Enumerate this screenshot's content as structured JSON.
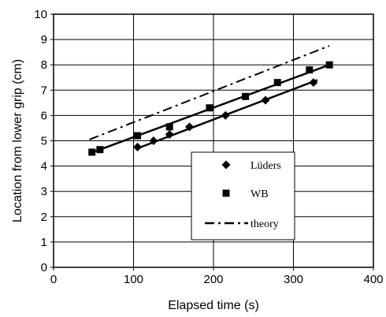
{
  "chart_data": {
    "type": "scatter",
    "title": "",
    "xlabel": "Elapsed time (s)",
    "ylabel": "Location from lower grip (cm)",
    "xlim": [
      0,
      400
    ],
    "ylim": [
      0,
      10
    ],
    "xticks": [
      "0",
      "100",
      "200",
      "300",
      "400"
    ],
    "yticks": [
      "0",
      "1",
      "2",
      "3",
      "4",
      "5",
      "6",
      "7",
      "8",
      "9",
      "10"
    ],
    "grid": true,
    "legend_placement": "lower-right",
    "series": [
      {
        "name": "Lüders",
        "marker": "diamond",
        "points": [
          [
            105,
            4.75
          ],
          [
            125,
            5.0
          ],
          [
            145,
            5.25
          ],
          [
            170,
            5.55
          ],
          [
            215,
            6.0
          ],
          [
            265,
            6.6
          ],
          [
            325,
            7.3
          ]
        ],
        "fit": [
          [
            105,
            4.7
          ],
          [
            330,
            7.4
          ]
        ]
      },
      {
        "name": "WB",
        "marker": "square",
        "points": [
          [
            48,
            4.55
          ],
          [
            58,
            4.65
          ],
          [
            105,
            5.2
          ],
          [
            145,
            5.55
          ],
          [
            195,
            6.3
          ],
          [
            240,
            6.75
          ],
          [
            280,
            7.3
          ],
          [
            320,
            7.8
          ],
          [
            345,
            8.0
          ]
        ],
        "fit": [
          [
            45,
            4.5
          ],
          [
            345,
            8.0
          ]
        ]
      },
      {
        "name": "theory",
        "marker": "none",
        "line_style": "dash-dot",
        "fit": [
          [
            45,
            5.05
          ],
          [
            345,
            8.75
          ]
        ]
      }
    ],
    "colors": {
      "marks": "#000000",
      "grid": "#000000",
      "background": "#ffffff"
    }
  }
}
